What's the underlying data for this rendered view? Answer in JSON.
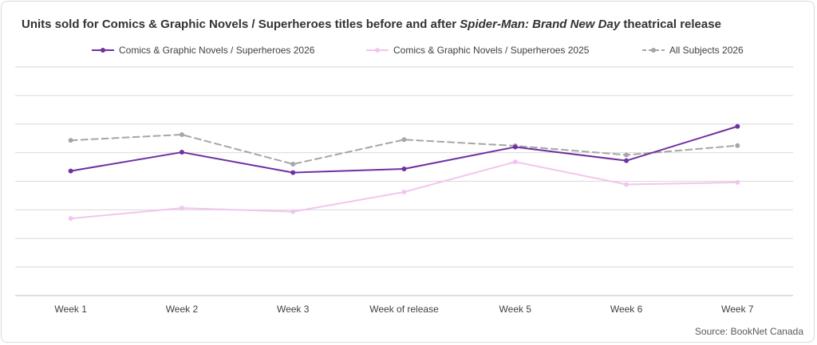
{
  "title": {
    "prefix": "Units sold for Comics & Graphic Novels / Superheroes titles before and after ",
    "italic": "Spider-Man: Brand New Day",
    "suffix": " theatrical release"
  },
  "source": "Source: BookNet Canada",
  "chart_data": {
    "type": "line",
    "title": "Units sold for Comics & Graphic Novels / Superheroes titles before and after Spider-Man: Brand New Day theatrical release",
    "categories": [
      "Week 1",
      "Week 2",
      "Week 3",
      "Week of release",
      "Week 5",
      "Week 6",
      "Week 7"
    ],
    "ylim": [
      0,
      100
    ],
    "grid": true,
    "y_tick_labels_shown": false,
    "legend_position": "top",
    "series": [
      {
        "name": "Comics & Graphic Novels / Superheroes 2026",
        "color": "#7030a0",
        "style": "solid",
        "width": 2,
        "values": [
          54.5,
          62.7,
          53.8,
          55.4,
          65.0,
          59.0,
          74.0
        ]
      },
      {
        "name": "Comics & Graphic Novels / Superheroes 2025",
        "color": "#f0c6ee",
        "style": "solid",
        "width": 2,
        "values": [
          33.7,
          38.3,
          36.7,
          45.3,
          58.5,
          48.6,
          49.5
        ]
      },
      {
        "name": "All Subjects 2026",
        "color": "#a6a6a6",
        "style": "dashed",
        "width": 2,
        "values": [
          67.9,
          70.4,
          57.5,
          68.2,
          65.5,
          61.5,
          65.6
        ]
      }
    ]
  }
}
